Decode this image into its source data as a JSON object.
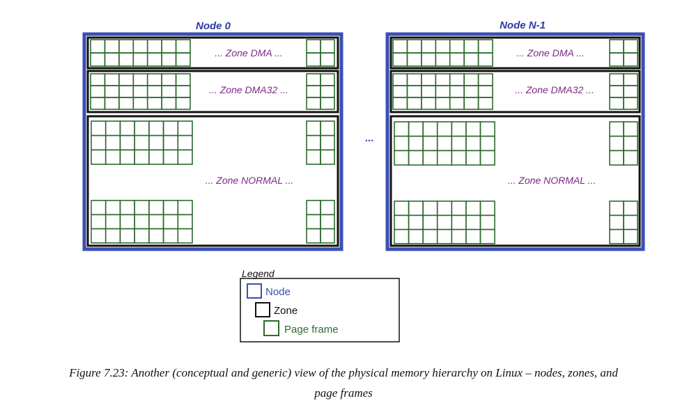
{
  "nodes": [
    {
      "title": "Node 0",
      "zones": [
        {
          "label": "... Zone DMA ..."
        },
        {
          "label": "... Zone DMA32 ..."
        },
        {
          "label": "... Zone NORMAL ..."
        }
      ]
    },
    {
      "title": "Node N-1",
      "zones": [
        {
          "label": "... Zone DMA ..."
        },
        {
          "label": "... Zone DMA32 ..."
        },
        {
          "label": "... Zone NORMAL ..."
        }
      ]
    }
  ],
  "between_nodes": "...",
  "legend": {
    "title": "Legend",
    "items": [
      {
        "label": "Node",
        "color": "#3a4fb4"
      },
      {
        "label": "Zone",
        "color": "#111111"
      },
      {
        "label": "Page frame",
        "color": "#2c6a2c"
      }
    ]
  },
  "caption": {
    "line1": "Figure 7.23: Another (conceptual and generic) view of the physical memory hierarchy on Linux – nodes, zones, and",
    "line2": "page frames"
  },
  "colors": {
    "node": "#3a4fb4",
    "zone": "#111111",
    "page_frame": "#2c6a2c",
    "zone_label": "#7a2a85"
  }
}
